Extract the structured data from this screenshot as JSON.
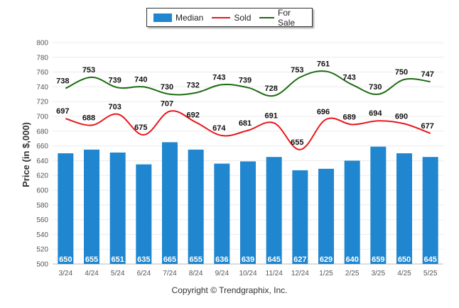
{
  "chart_data": {
    "type": "bar",
    "categories": [
      "3/24",
      "4/24",
      "5/24",
      "6/24",
      "7/24",
      "8/24",
      "9/24",
      "10/24",
      "11/24",
      "12/24",
      "1/25",
      "2/25",
      "3/25",
      "4/25",
      "5/25"
    ],
    "ylabel": "Price (in $,000)",
    "ylim": [
      500,
      800
    ],
    "yticks": [
      500,
      520,
      540,
      560,
      580,
      600,
      620,
      640,
      660,
      680,
      700,
      720,
      740,
      760,
      780,
      800
    ],
    "grid": true,
    "legend_position": "top-center",
    "series": [
      {
        "name": "Median",
        "type": "bar",
        "color": "#1f86cf",
        "values": [
          650,
          655,
          651,
          635,
          665,
          655,
          636,
          639,
          645,
          627,
          629,
          640,
          659,
          650,
          645
        ]
      },
      {
        "name": "Sold",
        "type": "line",
        "color": "#e8181c",
        "values": [
          697,
          688,
          703,
          675,
          707,
          692,
          674,
          681,
          691,
          655,
          696,
          689,
          694,
          690,
          677
        ]
      },
      {
        "name": "For Sale",
        "type": "line",
        "color": "#1d6b12",
        "values": [
          738,
          753,
          739,
          740,
          730,
          732,
          743,
          739,
          728,
          753,
          761,
          743,
          730,
          750,
          747
        ]
      }
    ]
  },
  "legend": {
    "median": "Median",
    "sold": "Sold",
    "for_sale": "For Sale"
  },
  "copyright": "Copyright © Trendgraphix, Inc."
}
